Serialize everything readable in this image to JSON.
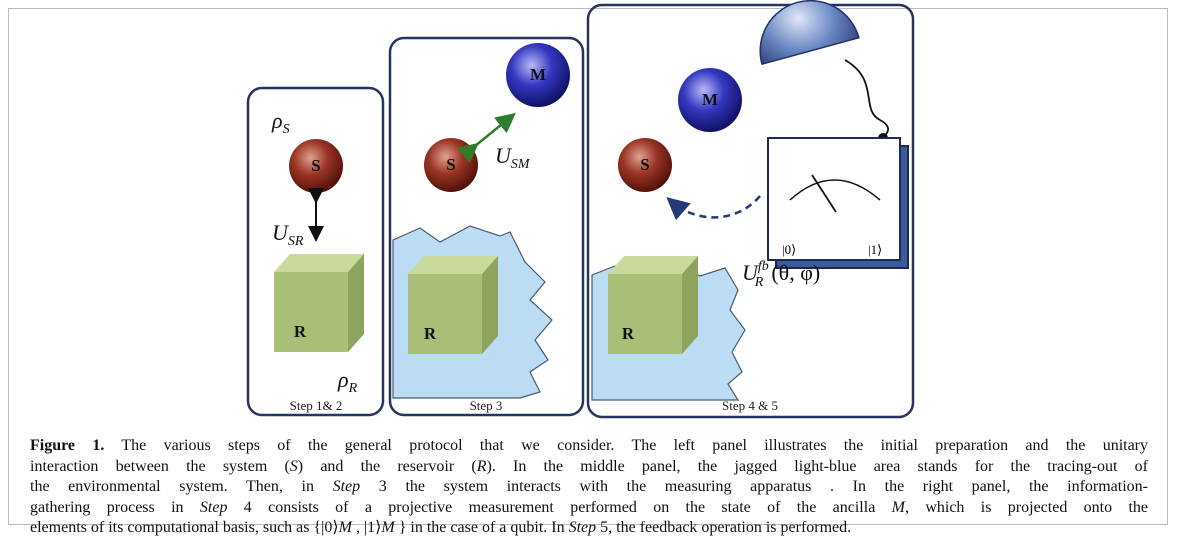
{
  "figure": {
    "panels": [
      {
        "label": "Step 1& 2",
        "system": "S",
        "reservoir": "R",
        "rho_system": {
          "base": "ρ",
          "sub": "S"
        },
        "rho_reservoir": {
          "base": "ρ",
          "sub": "R"
        },
        "coupling": {
          "base": "U",
          "sub": "SR"
        }
      },
      {
        "label": "Step 3",
        "system": "S",
        "reservoir": "R",
        "ancilla": "M",
        "coupling": {
          "base": "U",
          "sub": "SM"
        }
      },
      {
        "label": "Step 4 & 5",
        "system": "S",
        "reservoir": "R",
        "ancilla": "M",
        "meter": [
          "|0⟩",
          "|1⟩"
        ],
        "feedback": {
          "base": "U",
          "sub": "R",
          "sup": "fb",
          "args": "(θ, φ)"
        }
      }
    ],
    "caption": {
      "label": "Figure 1.",
      "lines": [
        [
          " The various steps of the general protocol that we consider. The left panel illustrates the initial preparation and the unitary"
        ],
        [
          "interaction between the system (",
          "S",
          ") and the reservoir (",
          "R",
          "). In the middle panel, the jagged light-blue area stands for the tracing-out of"
        ],
        [
          "the environmental system. Then, in ",
          "Step",
          " 3 the system interacts with the measuring apparatus . In the right panel, the information-"
        ],
        [
          "gathering process in ",
          "Step",
          " 4 consists of a projective measurement performed on the state of the ancilla ",
          "M",
          ", which is projected onto the"
        ],
        [
          "elements of its computational basis, such as {|0⟩",
          "M",
          " , |1⟩",
          "M",
          " } in the case of a qubit. In ",
          "Step",
          " 5, the feedback operation is performed."
        ]
      ]
    }
  }
}
